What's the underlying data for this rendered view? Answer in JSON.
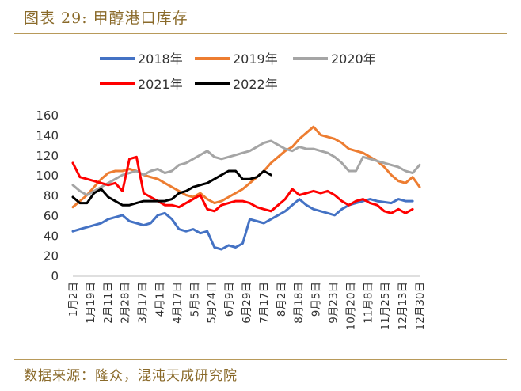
{
  "figure": {
    "title": "图表 29: 甲醇港口库存",
    "source": "数据来源：隆众，混沌天成研究院"
  },
  "chart_data": {
    "type": "line",
    "ylim": [
      0,
      160
    ],
    "yticks": [
      "160",
      "140",
      "120",
      "100",
      "80",
      "60",
      "40",
      "20",
      "0"
    ],
    "x_labels": [
      "1月2日",
      "1月19日",
      "2月11日",
      "2月28日",
      "3月17日",
      "4月1日",
      "4月17日",
      "5月5日",
      "5月24日",
      "6月9日",
      "6月29日",
      "7月17日",
      "8月2日",
      "8月18日",
      "9月5日",
      "9月23日",
      "10月20日",
      "11月8日",
      "11月25日",
      "12月13日",
      "12月30日"
    ],
    "x_count": 50,
    "legend_position": "top",
    "series": [
      {
        "name": "2018年",
        "color": "#4472C4",
        "values": [
          44,
          46,
          48,
          50,
          52,
          56,
          58,
          60,
          54,
          52,
          50,
          52,
          60,
          62,
          56,
          46,
          44,
          46,
          42,
          44,
          28,
          26,
          30,
          28,
          32,
          56,
          54,
          52,
          56,
          60,
          64,
          70,
          76,
          70,
          66,
          64,
          62,
          60,
          66,
          70,
          72,
          74,
          76,
          74,
          73,
          72,
          76,
          74,
          74,
          null
        ]
      },
      {
        "name": "2019年",
        "color": "#ED7D31",
        "values": [
          68,
          74,
          80,
          88,
          96,
          102,
          104,
          104,
          106,
          104,
          100,
          98,
          96,
          92,
          88,
          84,
          80,
          78,
          82,
          76,
          72,
          74,
          78,
          82,
          86,
          92,
          98,
          104,
          112,
          118,
          124,
          128,
          136,
          142,
          148,
          140,
          138,
          136,
          132,
          126,
          124,
          122,
          118,
          114,
          108,
          100,
          94,
          92,
          98,
          88
        ]
      },
      {
        "name": "2020年",
        "color": "#A5A5A5",
        "values": [
          90,
          84,
          80,
          84,
          88,
          92,
          96,
          100,
          102,
          104,
          100,
          104,
          106,
          102,
          104,
          110,
          112,
          116,
          120,
          124,
          118,
          116,
          118,
          120,
          122,
          124,
          128,
          132,
          134,
          130,
          126,
          124,
          128,
          126,
          126,
          124,
          122,
          118,
          112,
          104,
          104,
          118,
          116,
          114,
          112,
          110,
          108,
          104,
          102,
          110
        ]
      },
      {
        "name": "2021年",
        "color": "#FF0000",
        "values": [
          112,
          98,
          96,
          94,
          92,
          90,
          92,
          84,
          116,
          118,
          82,
          78,
          74,
          70,
          70,
          68,
          72,
          76,
          80,
          66,
          64,
          70,
          72,
          74,
          74,
          72,
          68,
          66,
          64,
          70,
          76,
          86,
          80,
          82,
          84,
          82,
          84,
          80,
          74,
          70,
          74,
          76,
          72,
          70,
          64,
          62,
          66,
          62,
          66,
          null
        ]
      },
      {
        "name": "2022年",
        "color": "#000000",
        "values": [
          78,
          72,
          72,
          82,
          86,
          78,
          74,
          70,
          70,
          72,
          74,
          74,
          74,
          74,
          76,
          82,
          84,
          88,
          90,
          92,
          96,
          100,
          104,
          104,
          96,
          96,
          98,
          104,
          100,
          null,
          null,
          null,
          null,
          null,
          null,
          null,
          null,
          null,
          null,
          null,
          null,
          null,
          null,
          null,
          null,
          null,
          null,
          null,
          null,
          null
        ]
      }
    ]
  }
}
